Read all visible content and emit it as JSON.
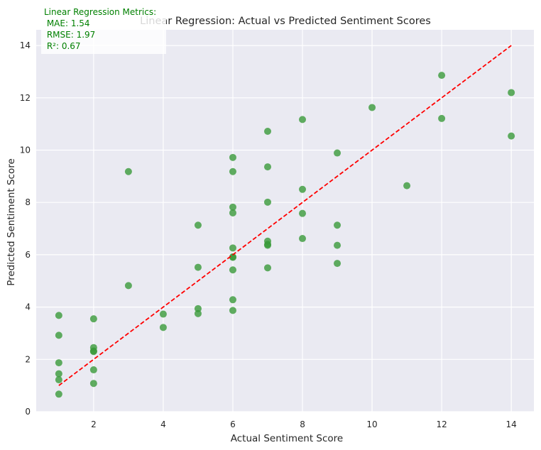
{
  "chart_data": {
    "type": "scatter",
    "title": "Linear Regression: Actual vs Predicted Sentiment Scores",
    "xlabel": "Actual Sentiment Score",
    "ylabel": "Predicted Sentiment Score",
    "xlim": [
      0.35,
      14.65
    ],
    "ylim": [
      0,
      14.6
    ],
    "xticks": [
      2,
      4,
      6,
      8,
      10,
      12,
      14
    ],
    "yticks": [
      0,
      2,
      4,
      6,
      8,
      10,
      12,
      14
    ],
    "grid": true,
    "background_color": "#eaeaf2",
    "grid_color": "#ffffff",
    "point_color": "#3a9a3a",
    "line_color": "#ff0000",
    "metrics_color": "#008000",
    "metrics_box": {
      "lines": [
        "Linear Regression Metrics:",
        " MAE: 1.54",
        " RMSE: 1.97",
        " R²: 0.67"
      ]
    },
    "reference_line": {
      "style": "dashed",
      "x": [
        1,
        14
      ],
      "y": [
        1,
        14
      ]
    },
    "series": [
      {
        "x": [
          1,
          1,
          1,
          1,
          1,
          1,
          2,
          2,
          2,
          2,
          2,
          2,
          3,
          3,
          4,
          4,
          5,
          5,
          5,
          5,
          6,
          6,
          6,
          6,
          6,
          6,
          6,
          6,
          6,
          6,
          7,
          7,
          7,
          7,
          7,
          7,
          7,
          8,
          8,
          8,
          8,
          9,
          9,
          9,
          9,
          10,
          11,
          12,
          12,
          14,
          14
        ],
        "y": [
          3.68,
          2.92,
          1.87,
          1.45,
          1.22,
          0.67,
          3.55,
          2.45,
          2.3,
          1.6,
          1.08,
          2.32,
          9.18,
          4.82,
          3.73,
          3.22,
          7.13,
          5.52,
          3.94,
          3.75,
          9.72,
          9.18,
          7.82,
          7.6,
          6.26,
          5.9,
          5.42,
          4.28,
          3.87,
          5.92,
          10.72,
          9.36,
          8.01,
          6.52,
          6.36,
          5.5,
          6.4,
          11.17,
          8.5,
          7.58,
          6.62,
          9.89,
          7.13,
          6.36,
          5.67,
          11.63,
          8.64,
          12.86,
          11.21,
          12.2,
          10.54
        ]
      }
    ]
  }
}
